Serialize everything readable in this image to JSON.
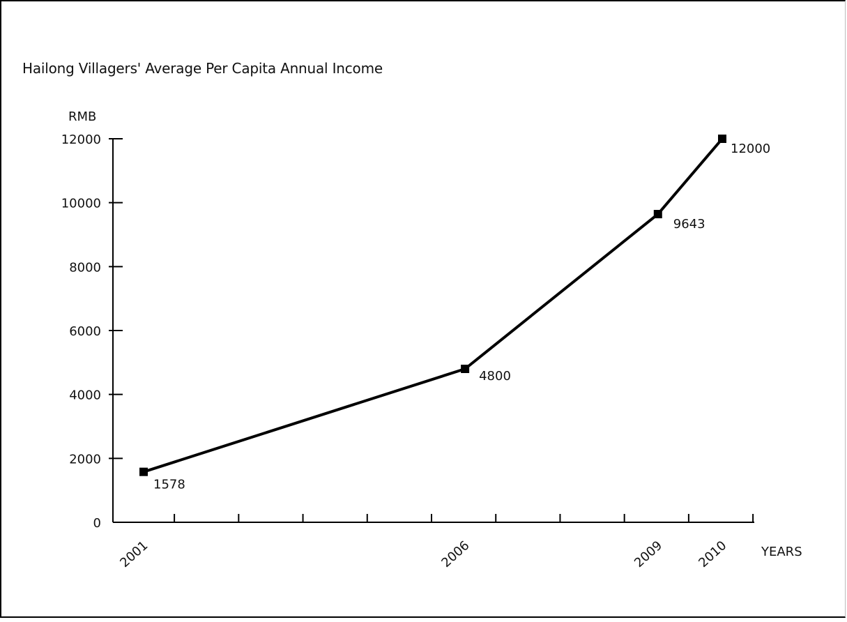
{
  "chart_data": {
    "type": "line",
    "title": "Hailong Villagers' Average Per Capita Annual Income",
    "ylabel": "RMB",
    "xlabel": "YEARS",
    "ylim": [
      0,
      12000
    ],
    "yticks": [
      0,
      2000,
      4000,
      6000,
      8000,
      10000,
      12000
    ],
    "xlim": [
      2000.5,
      2010.5
    ],
    "x_ticks_marked": [
      2001,
      2002,
      2003,
      2004,
      2005,
      2006,
      2007,
      2008,
      2009,
      2010
    ],
    "x_tick_labels": [
      "2001",
      "2006",
      "2009",
      "2010"
    ],
    "x": [
      2001,
      2006,
      2009,
      2010
    ],
    "series": [
      {
        "values": [
          1578,
          4800,
          9643,
          12000
        ],
        "data_labels": [
          "1578",
          "4800",
          "9643",
          "12000"
        ],
        "marker": "square",
        "color": "#000000"
      }
    ],
    "grid": false,
    "legend": "none"
  }
}
